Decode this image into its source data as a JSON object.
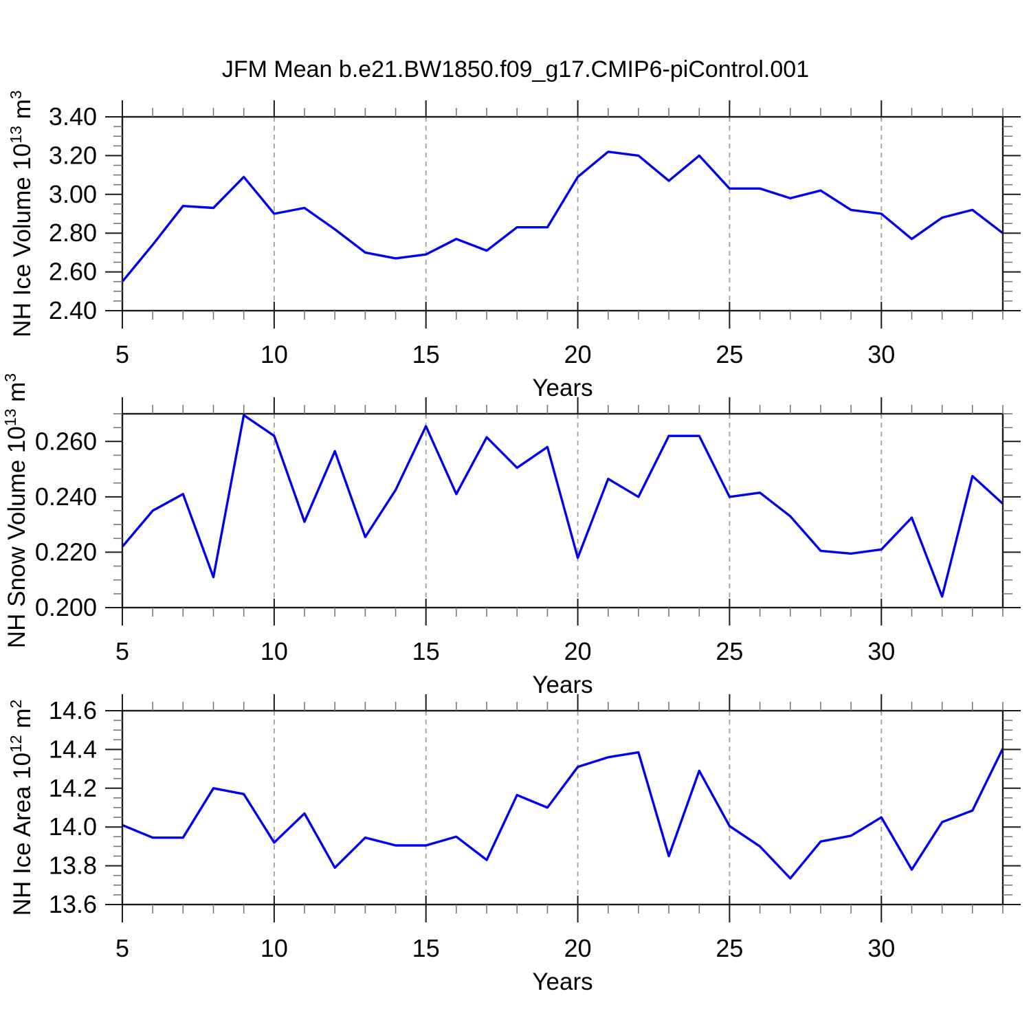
{
  "title": "JFM Mean b.e21.BW1850.f09_g17.CMIP6-piControl.001",
  "colors": {
    "line": "#0000ee",
    "axis": "#1a1a1a",
    "minor_tick": "#777777",
    "grid": "#a0a0a0",
    "text": "#000000"
  },
  "chart_data": [
    {
      "type": "line",
      "name": "nh-ice-volume",
      "ylabel_text": "NH Ice Volume 10^13 m^3",
      "ylabel_parts": [
        "NH Ice Volume 10",
        {
          "sup": "13"
        },
        " m",
        {
          "sup": "3"
        }
      ],
      "xlabel": "Years",
      "x_start": 5,
      "x_end": 34,
      "x": [
        5,
        6,
        7,
        8,
        9,
        10,
        11,
        12,
        13,
        14,
        15,
        16,
        17,
        18,
        19,
        20,
        21,
        22,
        23,
        24,
        25,
        26,
        27,
        28,
        29,
        30,
        31,
        32,
        33,
        34
      ],
      "values": [
        2.55,
        2.74,
        2.94,
        2.93,
        3.09,
        2.9,
        2.93,
        2.82,
        2.7,
        2.67,
        2.69,
        2.77,
        2.71,
        2.83,
        2.83,
        3.09,
        3.22,
        3.2,
        3.07,
        3.2,
        3.03,
        3.03,
        2.98,
        3.02,
        2.92,
        2.9,
        2.77,
        2.88,
        2.92,
        2.8
      ],
      "ylim": [
        2.4,
        3.4
      ],
      "ytick_values": [
        2.4,
        2.6,
        2.8,
        3.0,
        3.2,
        3.4
      ],
      "ytick_labels": [
        "2.40",
        "2.60",
        "2.80",
        "3.00",
        "3.20",
        "3.40"
      ],
      "yminor_step": 0.05,
      "xtick_values": [
        5,
        10,
        15,
        20,
        25,
        30
      ],
      "xtick_labels": [
        "5",
        "10",
        "15",
        "20",
        "25",
        "30"
      ],
      "xminor_step": 1,
      "grid_x": [
        10,
        15,
        20,
        25,
        30
      ],
      "grid_style": "vertical-dashed"
    },
    {
      "type": "line",
      "name": "nh-snow-volume",
      "ylabel_text": "NH Snow Volume 10^13 m^3",
      "ylabel_parts": [
        "NH Snow Volume 10",
        {
          "sup": "13"
        },
        " m",
        {
          "sup": "3"
        }
      ],
      "xlabel": "Years",
      "x_start": 5,
      "x_end": 34,
      "x": [
        5,
        6,
        7,
        8,
        9,
        10,
        11,
        12,
        13,
        14,
        15,
        16,
        17,
        18,
        19,
        20,
        21,
        22,
        23,
        24,
        25,
        26,
        27,
        28,
        29,
        30,
        31,
        32,
        33,
        34
      ],
      "values": [
        0.222,
        0.235,
        0.241,
        0.211,
        0.2695,
        0.262,
        0.231,
        0.2565,
        0.2255,
        0.2425,
        0.2655,
        0.241,
        0.2615,
        0.2505,
        0.258,
        0.218,
        0.2465,
        0.24,
        0.262,
        0.262,
        0.24,
        0.2415,
        0.233,
        0.2205,
        0.2195,
        0.221,
        0.2325,
        0.204,
        0.2475,
        0.2375
      ],
      "ylim": [
        0.2,
        0.27
      ],
      "ytick_values": [
        0.2,
        0.22,
        0.24,
        0.26
      ],
      "ytick_labels": [
        "0.200",
        "0.220",
        "0.240",
        "0.260"
      ],
      "yminor_step": 0.005,
      "xtick_values": [
        5,
        10,
        15,
        20,
        25,
        30
      ],
      "xtick_labels": [
        "5",
        "10",
        "15",
        "20",
        "25",
        "30"
      ],
      "xminor_step": 1,
      "grid_x": [
        10,
        15,
        20,
        25,
        30
      ],
      "grid_style": "vertical-dashed"
    },
    {
      "type": "line",
      "name": "nh-ice-area",
      "ylabel_text": "NH Ice Area 10^12 m^2",
      "ylabel_parts": [
        "NH Ice Area 10",
        {
          "sup": "12"
        },
        " m",
        {
          "sup": "2"
        }
      ],
      "xlabel": "Years",
      "x_start": 5,
      "x_end": 34,
      "x": [
        5,
        6,
        7,
        8,
        9,
        10,
        11,
        12,
        13,
        14,
        15,
        16,
        17,
        18,
        19,
        20,
        21,
        22,
        23,
        24,
        25,
        26,
        27,
        28,
        29,
        30,
        31,
        32,
        33,
        34
      ],
      "values": [
        14.01,
        13.945,
        13.945,
        14.2,
        14.17,
        13.92,
        14.07,
        13.79,
        13.945,
        13.905,
        13.905,
        13.95,
        13.83,
        14.165,
        14.1,
        14.31,
        14.36,
        14.385,
        13.85,
        14.29,
        14.005,
        13.9,
        13.735,
        13.925,
        13.955,
        14.05,
        13.78,
        14.025,
        14.085,
        14.405
      ],
      "ylim": [
        13.6,
        14.6
      ],
      "ytick_values": [
        13.6,
        13.8,
        14.0,
        14.2,
        14.4,
        14.6
      ],
      "ytick_labels": [
        "13.6",
        "13.8",
        "14.0",
        "14.2",
        "14.4",
        "14.6"
      ],
      "yminor_step": 0.05,
      "xtick_values": [
        5,
        10,
        15,
        20,
        25,
        30
      ],
      "xtick_labels": [
        "5",
        "10",
        "15",
        "20",
        "25",
        "30"
      ],
      "xminor_step": 1,
      "grid_x": [
        10,
        15,
        20,
        25,
        30
      ],
      "grid_style": "vertical-dashed"
    }
  ]
}
